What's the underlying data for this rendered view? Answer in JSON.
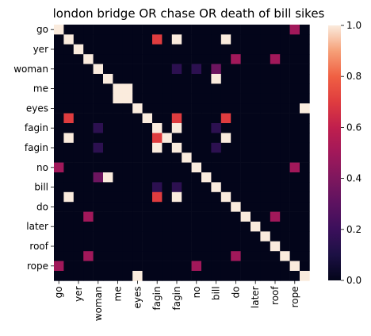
{
  "chart_data": {
    "type": "heatmap",
    "title": "london bridge OR chase OR death of bill sikes",
    "xlabel": "",
    "ylabel": "",
    "rows": [
      "go",
      "",
      "yer",
      "",
      "woman",
      "",
      "me",
      "",
      "eyes",
      "",
      "fagin",
      "",
      "fagin",
      "",
      "no",
      "",
      "bill",
      "",
      "do",
      "",
      "later",
      "",
      "roof",
      "",
      "rope",
      ""
    ],
    "cols": [
      "go",
      "",
      "yer",
      "",
      "woman",
      "",
      "me",
      "",
      "eyes",
      "",
      "fagin",
      "",
      "fagin",
      "",
      "no",
      "",
      "bill",
      "",
      "do",
      "",
      "later",
      "",
      "roof",
      "",
      "rope",
      ""
    ],
    "y_tick_labels": [
      "go",
      "yer",
      "woman",
      "me",
      "eyes",
      "fagin",
      "fagin",
      "no",
      "bill",
      "do",
      "later",
      "roof",
      "rope"
    ],
    "x_tick_labels": [
      "go",
      "yer",
      "woman",
      "me",
      "eyes",
      "fagin",
      "fagin",
      "no",
      "bill",
      "do",
      "later",
      "roof",
      "rope"
    ],
    "colorbar": {
      "min": 0.0,
      "max": 1.0,
      "ticks": [
        "0.0",
        "0.2",
        "0.4",
        "0.6",
        "0.8",
        "1.0"
      ]
    },
    "values": [
      [
        1,
        0,
        0,
        0,
        0,
        0,
        0,
        0,
        0,
        0,
        0,
        0,
        0,
        0,
        0,
        0,
        0,
        0,
        0,
        0,
        0,
        0,
        0,
        0,
        0.5,
        0
      ],
      [
        0,
        1,
        0,
        0,
        0,
        0,
        0,
        0,
        0,
        0,
        0.7,
        0,
        1,
        0,
        0,
        0,
        0,
        1,
        0,
        0,
        0,
        0,
        0,
        0,
        0,
        0
      ],
      [
        0,
        0,
        1,
        0,
        0,
        0,
        0,
        0,
        0,
        0,
        0,
        0,
        0,
        0,
        0,
        0,
        0,
        0,
        0,
        0,
        0,
        0,
        0,
        0,
        0,
        0
      ],
      [
        0,
        0,
        0,
        1,
        0,
        0,
        0,
        0,
        0,
        0,
        0,
        0,
        0,
        0,
        0,
        0,
        0,
        0,
        0.5,
        0,
        0,
        0,
        0.5,
        0,
        0,
        0
      ],
      [
        0,
        0,
        0,
        0,
        1,
        0,
        0,
        0,
        0,
        0,
        0,
        0,
        0.15,
        0,
        0.15,
        0,
        0.35,
        0,
        0,
        0,
        0,
        0,
        0,
        0,
        0,
        0
      ],
      [
        0,
        0,
        0,
        0,
        0,
        1,
        0,
        0,
        0,
        0,
        0,
        0,
        0,
        0,
        0,
        0,
        1,
        0,
        0,
        0,
        0,
        0,
        0,
        0,
        0,
        0
      ],
      [
        0,
        0,
        0,
        0,
        0,
        0,
        1,
        1,
        0,
        0,
        0,
        0,
        0,
        0,
        0,
        0,
        0,
        0,
        0,
        0,
        0,
        0,
        0,
        0,
        0,
        0
      ],
      [
        0,
        0,
        0,
        0,
        0,
        0,
        1,
        1,
        0,
        0,
        0,
        0,
        0,
        0,
        0,
        0,
        0,
        0,
        0,
        0,
        0,
        0,
        0,
        0,
        0,
        0
      ],
      [
        0,
        0,
        0,
        0,
        0,
        0,
        0,
        0,
        1,
        0,
        0,
        0,
        0,
        0,
        0,
        0,
        0,
        0,
        0,
        0,
        0,
        0,
        0,
        0,
        0,
        1
      ],
      [
        0,
        0.7,
        0,
        0,
        0,
        0,
        0,
        0,
        0,
        1,
        0,
        0,
        0.7,
        0,
        0,
        0,
        0,
        0.7,
        0,
        0,
        0,
        0,
        0,
        0,
        0,
        0
      ],
      [
        0,
        0,
        0,
        0,
        0.15,
        0,
        0,
        0,
        0,
        0,
        1,
        0,
        1,
        0,
        0,
        0,
        0.15,
        0,
        0,
        0,
        0,
        0,
        0,
        0,
        0,
        0
      ],
      [
        0,
        1,
        0,
        0,
        0,
        0,
        0,
        0,
        0,
        0,
        0.7,
        1,
        0,
        0,
        0,
        0,
        0,
        1,
        0,
        0,
        0,
        0,
        0,
        0,
        0,
        0
      ],
      [
        0,
        0,
        0,
        0,
        0.15,
        0,
        0,
        0,
        0,
        0,
        1,
        0,
        1,
        0,
        0,
        0,
        0.15,
        0,
        0,
        0,
        0,
        0,
        0,
        0,
        0,
        0
      ],
      [
        0,
        0,
        0,
        0,
        0,
        0,
        0,
        0,
        0,
        0,
        0,
        0,
        0,
        1,
        0,
        0,
        0,
        0,
        0,
        0,
        0,
        0,
        0,
        0,
        0,
        0
      ],
      [
        0.5,
        0,
        0,
        0,
        0,
        0,
        0,
        0,
        0,
        0,
        0,
        0,
        0,
        0,
        1,
        0,
        0,
        0,
        0,
        0,
        0,
        0,
        0,
        0,
        0.5,
        0
      ],
      [
        0,
        0,
        0,
        0,
        0.35,
        1,
        0,
        0,
        0,
        0,
        0,
        0,
        0,
        0,
        0,
        1,
        0,
        0,
        0,
        0,
        0,
        0,
        0,
        0,
        0,
        0
      ],
      [
        0,
        0,
        0,
        0,
        0,
        0,
        0,
        0,
        0,
        0,
        0.15,
        0,
        0.15,
        0,
        0,
        0,
        1,
        0,
        0,
        0,
        0,
        0,
        0,
        0,
        0,
        0
      ],
      [
        0,
        1,
        0,
        0,
        0,
        0,
        0,
        0,
        0,
        0,
        0.7,
        0,
        1,
        0,
        0,
        0,
        0,
        1,
        0,
        0,
        0,
        0,
        0,
        0,
        0,
        0
      ],
      [
        0,
        0,
        0,
        0,
        0,
        0,
        0,
        0,
        0,
        0,
        0,
        0,
        0,
        0,
        0,
        0,
        0,
        0,
        1,
        0,
        0,
        0,
        0,
        0,
        0,
        0
      ],
      [
        0,
        0,
        0,
        0.5,
        0,
        0,
        0,
        0,
        0,
        0,
        0,
        0,
        0,
        0,
        0,
        0,
        0,
        0,
        0,
        1,
        0,
        0,
        0.5,
        0,
        0,
        0
      ],
      [
        0,
        0,
        0,
        0,
        0,
        0,
        0,
        0,
        0,
        0,
        0,
        0,
        0,
        0,
        0,
        0,
        0,
        0,
        0,
        0,
        1,
        0,
        0,
        0,
        0,
        0
      ],
      [
        0,
        0,
        0,
        0,
        0,
        0,
        0,
        0,
        0,
        0,
        0,
        0,
        0,
        0,
        0,
        0,
        0,
        0,
        0,
        0,
        0,
        1,
        0,
        0,
        0,
        0
      ],
      [
        0,
        0,
        0,
        0,
        0,
        0,
        0,
        0,
        0,
        0,
        0,
        0,
        0,
        0,
        0,
        0,
        0,
        0,
        0,
        0,
        0,
        0,
        1,
        0,
        0,
        0
      ],
      [
        0,
        0,
        0,
        0.5,
        0,
        0,
        0,
        0,
        0,
        0,
        0,
        0,
        0,
        0,
        0,
        0,
        0,
        0,
        0.5,
        0,
        0,
        0,
        0,
        1,
        0,
        0
      ],
      [
        0.5,
        0,
        0,
        0,
        0,
        0,
        0,
        0,
        0,
        0,
        0,
        0,
        0,
        0,
        0.5,
        0,
        0,
        0,
        0,
        0,
        0,
        0,
        0,
        0,
        1,
        0
      ],
      [
        0,
        0,
        0,
        0,
        0,
        0,
        0,
        0,
        1,
        0,
        0,
        0,
        0,
        0,
        0,
        0,
        0,
        0,
        0,
        0,
        0,
        0,
        0,
        0,
        0,
        1
      ]
    ]
  }
}
